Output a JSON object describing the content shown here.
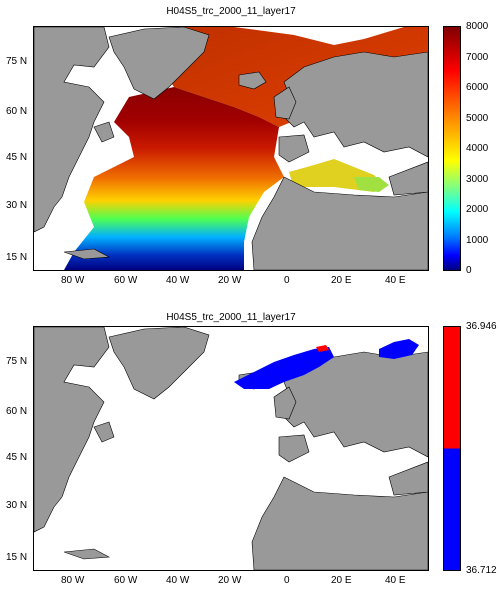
{
  "panels": [
    {
      "title": "H04S5_trc_2000_11_layer17",
      "x_ticks": [
        "80 W",
        "60 W",
        "40 W",
        "20 W",
        "0",
        "20 E",
        "40 E"
      ],
      "y_ticks": [
        "75 N",
        "60 N",
        "45 N",
        "30 N",
        "15 N"
      ],
      "colorbar_ticks": [
        "8000",
        "7000",
        "6000",
        "5000",
        "4000",
        "3000",
        "2000",
        "1000",
        "0"
      ],
      "colormap": "jet",
      "colors": {
        "land": "#999999",
        "ocean_nodata": "#ffffff"
      }
    },
    {
      "title": "H04S5_trc_2000_11_layer17",
      "colorbar_ticks": [
        "36.946",
        "36.712"
      ],
      "x_ticks": [
        "80 W",
        "60 W",
        "40 W",
        "20 W",
        "0",
        "20 E",
        "40 E"
      ],
      "y_ticks": [
        "75 N",
        "60 N",
        "45 N",
        "30 N",
        "15 N"
      ],
      "colors": {
        "high": "#ff0000",
        "low": "#0000ff",
        "land": "#999999"
      }
    }
  ]
}
